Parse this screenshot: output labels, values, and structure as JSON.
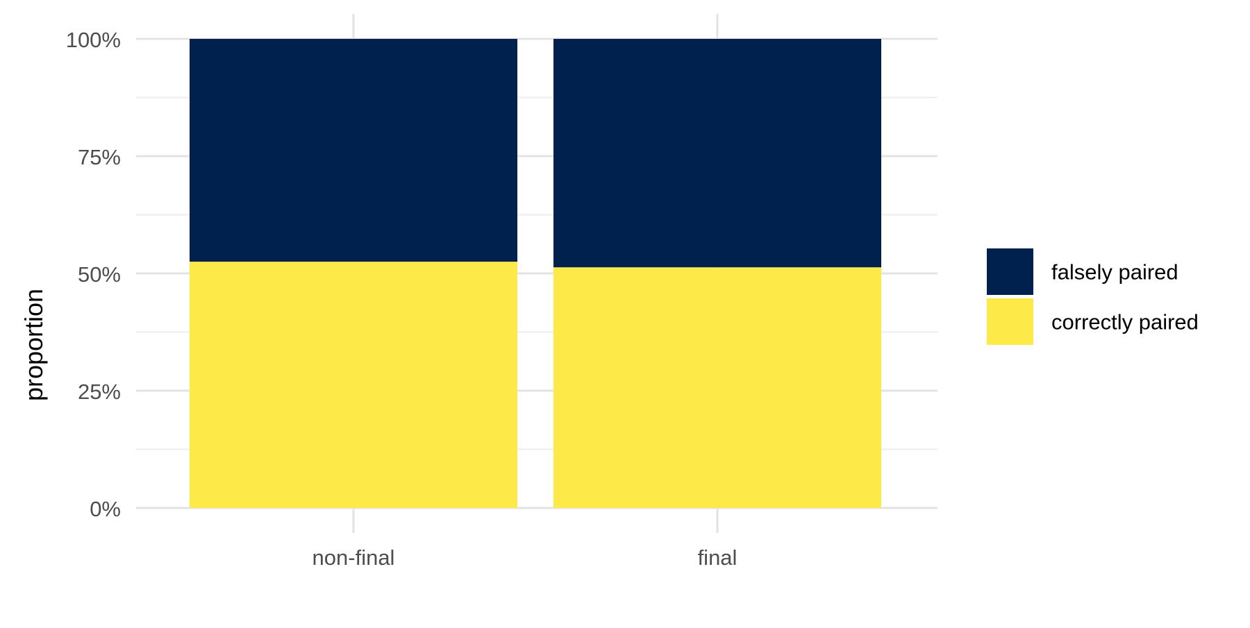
{
  "chart_data": {
    "type": "bar",
    "stacked": true,
    "categories": [
      "non-final",
      "final"
    ],
    "series": [
      {
        "name": "correctly paired",
        "values": [
          0.525,
          0.513
        ],
        "color": "#FDE948"
      },
      {
        "name": "falsely paired",
        "values": [
          0.475,
          0.487
        ],
        "color": "#00204D"
      }
    ],
    "ylabel": "proportion",
    "xlabel": "",
    "ylim": [
      0,
      1
    ],
    "yticks": [
      {
        "value": 0,
        "label": "0%"
      },
      {
        "value": 0.25,
        "label": "25%"
      },
      {
        "value": 0.5,
        "label": "50%"
      },
      {
        "value": 0.75,
        "label": "75%"
      },
      {
        "value": 1,
        "label": "100%"
      }
    ],
    "legend": {
      "position": "right",
      "entries": [
        "falsely paired",
        "correctly paired"
      ]
    },
    "grid": true
  }
}
